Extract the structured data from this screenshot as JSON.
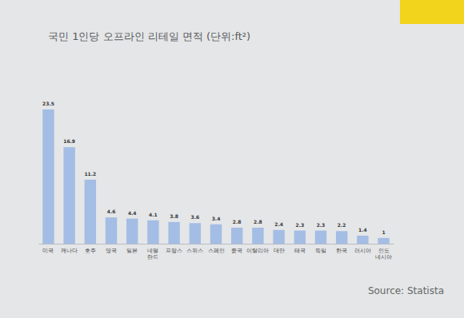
{
  "chart_data": {
    "type": "bar",
    "title": "국민 1인당 오프라인 리테일 면적 (단위:ft²)",
    "categories": [
      "미국",
      "캐나다",
      "호주",
      "영국",
      "일본",
      "네덜\n란드",
      "프랑스",
      "스위스",
      "스페인",
      "중국",
      "이탈리아",
      "대만",
      "태국",
      "독일",
      "한국",
      "러시아",
      "인도\n네시아"
    ],
    "values": [
      23.5,
      16.9,
      11.2,
      4.6,
      4.4,
      4.1,
      3.8,
      3.6,
      3.4,
      2.8,
      2.8,
      2.4,
      2.3,
      2.3,
      2.2,
      1.4,
      1
    ],
    "color": "#a4bde4",
    "ylim": [
      0,
      23.5
    ],
    "data_labels": true,
    "tick_labels": "x",
    "source": "Source: Statista"
  }
}
